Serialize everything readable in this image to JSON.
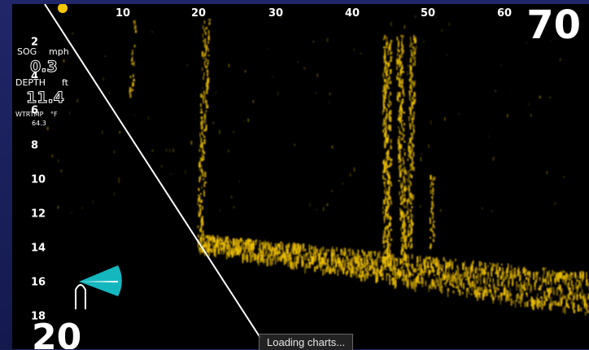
{
  "sonar": {
    "range_top": "70",
    "range_bottom": "20",
    "x_ticks": [
      "10",
      "20",
      "30",
      "40",
      "50",
      "60"
    ],
    "y_ticks": [
      "2",
      "4",
      "6",
      "8",
      "10",
      "12",
      "14",
      "16",
      "18"
    ]
  },
  "readouts": {
    "sog_label": "SOG",
    "sog_unit": "mph",
    "sog_value": "0.3",
    "depth_label": "DEPTH",
    "depth_unit": "ft",
    "depth_value": "11.4",
    "wtrtmp_label": "WTRTMP",
    "wtrtmp_unit": "°F",
    "wtrtmp_value": "64.3"
  },
  "status": {
    "loading_text": "Loading charts..."
  },
  "colors": {
    "echo": "#f5c400",
    "beam": "#19d7e0",
    "background": "#000000",
    "frame": "#1c2262"
  }
}
